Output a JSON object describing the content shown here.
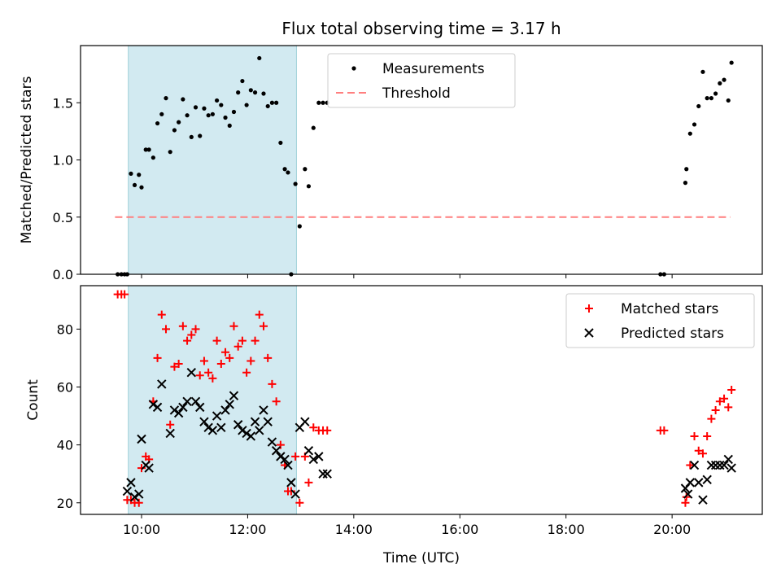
{
  "title": "Flux total observing time = 3.17 h",
  "colors": {
    "measurement": "#000000",
    "threshold": "#ff7f7f",
    "matched": "#ff0000",
    "predicted": "#000000",
    "highlight": "#add8e6"
  },
  "chart_data": [
    {
      "type": "scatter",
      "ylabel": "Matched/Predicted stars",
      "xlabel": "",
      "x_unit": "hours (UTC)",
      "xlim": [
        8.85,
        21.7
      ],
      "ylim": [
        0,
        2.0
      ],
      "yticks": [
        0.0,
        0.5,
        1.0,
        1.5
      ],
      "ytick_labels": [
        "0.0",
        "0.5",
        "1.0",
        "1.5"
      ],
      "xticks": [
        10,
        12,
        14,
        16,
        18,
        20
      ],
      "xtick_labels": [
        "",
        "",
        "",
        "",
        "",
        ""
      ],
      "legend_position": "top-center",
      "highlight_span": [
        9.75,
        12.92
      ],
      "series": [
        {
          "name": "Measurements",
          "marker": "dot",
          "x": [
            9.55,
            9.62,
            9.68,
            9.73,
            9.8,
            9.87,
            9.95,
            10.0,
            10.08,
            10.14,
            10.22,
            10.3,
            10.38,
            10.46,
            10.54,
            10.62,
            10.7,
            10.78,
            10.86,
            10.94,
            11.02,
            11.1,
            11.18,
            11.26,
            11.34,
            11.42,
            11.5,
            11.58,
            11.66,
            11.74,
            11.82,
            11.9,
            11.98,
            12.06,
            12.14,
            12.22,
            12.3,
            12.38,
            12.46,
            12.54,
            12.62,
            12.7,
            12.76,
            12.82,
            12.9,
            12.98,
            13.08,
            13.15,
            13.24,
            13.34,
            13.42,
            13.5,
            19.78,
            19.85,
            20.25,
            20.27,
            20.34,
            20.42,
            20.5,
            20.58,
            20.66,
            20.74,
            20.82,
            20.9,
            20.98,
            21.06,
            21.12
          ],
          "y": [
            0.0,
            0.0,
            0.0,
            0.0,
            0.88,
            0.78,
            0.87,
            0.76,
            1.09,
            1.09,
            1.02,
            1.32,
            1.4,
            1.54,
            1.07,
            1.26,
            1.33,
            1.53,
            1.39,
            1.2,
            1.46,
            1.21,
            1.45,
            1.39,
            1.4,
            1.52,
            1.48,
            1.37,
            1.3,
            1.42,
            1.59,
            1.69,
            1.48,
            1.61,
            1.59,
            1.89,
            1.58,
            1.47,
            1.5,
            1.5,
            1.15,
            0.92,
            0.89,
            0.0,
            0.79,
            0.42,
            0.92,
            0.77,
            1.28,
            1.5,
            1.5,
            1.5,
            0.0,
            0.0,
            0.8,
            0.92,
            1.23,
            1.31,
            1.47,
            1.77,
            1.54,
            1.54,
            1.58,
            1.67,
            1.7,
            1.52,
            1.85
          ]
        },
        {
          "name": "Threshold",
          "style": "dashed",
          "x": [
            9.5,
            21.1
          ],
          "y": [
            0.5,
            0.5
          ]
        }
      ]
    },
    {
      "type": "scatter",
      "ylabel": "Count",
      "xlabel": "Time (UTC)",
      "x_unit": "hours (UTC)",
      "xlim": [
        8.85,
        21.7
      ],
      "ylim": [
        16,
        95
      ],
      "yticks": [
        20,
        40,
        60,
        80
      ],
      "ytick_labels": [
        "20",
        "40",
        "60",
        "80"
      ],
      "xticks": [
        10,
        12,
        14,
        16,
        18,
        20
      ],
      "xtick_labels": [
        "10:00",
        "12:00",
        "14:00",
        "16:00",
        "18:00",
        "20:00"
      ],
      "legend_position": "top-right",
      "highlight_span": [
        9.75,
        12.92
      ],
      "series": [
        {
          "name": "Matched stars",
          "marker": "plus",
          "x": [
            9.55,
            9.62,
            9.68,
            9.73,
            9.8,
            9.87,
            9.95,
            10.0,
            10.08,
            10.14,
            10.22,
            10.3,
            10.38,
            10.46,
            10.54,
            10.62,
            10.7,
            10.78,
            10.86,
            10.94,
            11.02,
            11.1,
            11.18,
            11.26,
            11.34,
            11.42,
            11.5,
            11.58,
            11.66,
            11.74,
            11.82,
            11.9,
            11.98,
            12.06,
            12.14,
            12.22,
            12.3,
            12.38,
            12.46,
            12.54,
            12.62,
            12.7,
            12.76,
            12.82,
            12.9,
            12.98,
            13.08,
            13.15,
            13.24,
            13.34,
            13.42,
            13.5,
            19.78,
            19.85,
            20.25,
            20.27,
            20.34,
            20.42,
            20.5,
            20.58,
            20.66,
            20.74,
            20.82,
            20.9,
            20.98,
            21.06,
            21.12
          ],
          "y": [
            92,
            92,
            92,
            21,
            21,
            20,
            20,
            32,
            36,
            35,
            55,
            70,
            85,
            80,
            47,
            67,
            68,
            81,
            76,
            78,
            80,
            64,
            69,
            65,
            63,
            76,
            68,
            72,
            70,
            81,
            74,
            76,
            65,
            69,
            76,
            85,
            81,
            70,
            61,
            55,
            40,
            33,
            24,
            24,
            36,
            20,
            36,
            27,
            46,
            45,
            45,
            45,
            45,
            45,
            20,
            22,
            33,
            43,
            38,
            37,
            43,
            49,
            52,
            55,
            56,
            53,
            59
          ]
        },
        {
          "name": "Predicted stars",
          "marker": "x",
          "x": [
            9.73,
            9.8,
            9.87,
            9.95,
            10.0,
            10.08,
            10.14,
            10.22,
            10.3,
            10.38,
            10.54,
            10.62,
            10.7,
            10.78,
            10.86,
            10.94,
            11.02,
            11.1,
            11.18,
            11.26,
            11.34,
            11.42,
            11.5,
            11.58,
            11.66,
            11.74,
            11.82,
            11.9,
            11.98,
            12.06,
            12.14,
            12.22,
            12.3,
            12.38,
            12.46,
            12.54,
            12.62,
            12.7,
            12.76,
            12.82,
            12.9,
            12.98,
            13.08,
            13.15,
            13.24,
            13.34,
            13.42,
            13.5,
            20.25,
            20.3,
            20.34,
            20.42,
            20.5,
            20.58,
            20.66,
            20.74,
            20.82,
            20.9,
            20.98,
            21.06,
            21.12
          ],
          "y": [
            24,
            27,
            22,
            23,
            42,
            33,
            32,
            54,
            53,
            61,
            44,
            52,
            51,
            53,
            55,
            65,
            55,
            53,
            48,
            46,
            45,
            50,
            46,
            52,
            54,
            57,
            47,
            45,
            44,
            43,
            48,
            45,
            52,
            48,
            41,
            38,
            36,
            35,
            33,
            27,
            23,
            46,
            48,
            38,
            35,
            36,
            30,
            30,
            25,
            23,
            27,
            33,
            27,
            21,
            28,
            33,
            33,
            33,
            33,
            35,
            32
          ]
        }
      ]
    }
  ]
}
